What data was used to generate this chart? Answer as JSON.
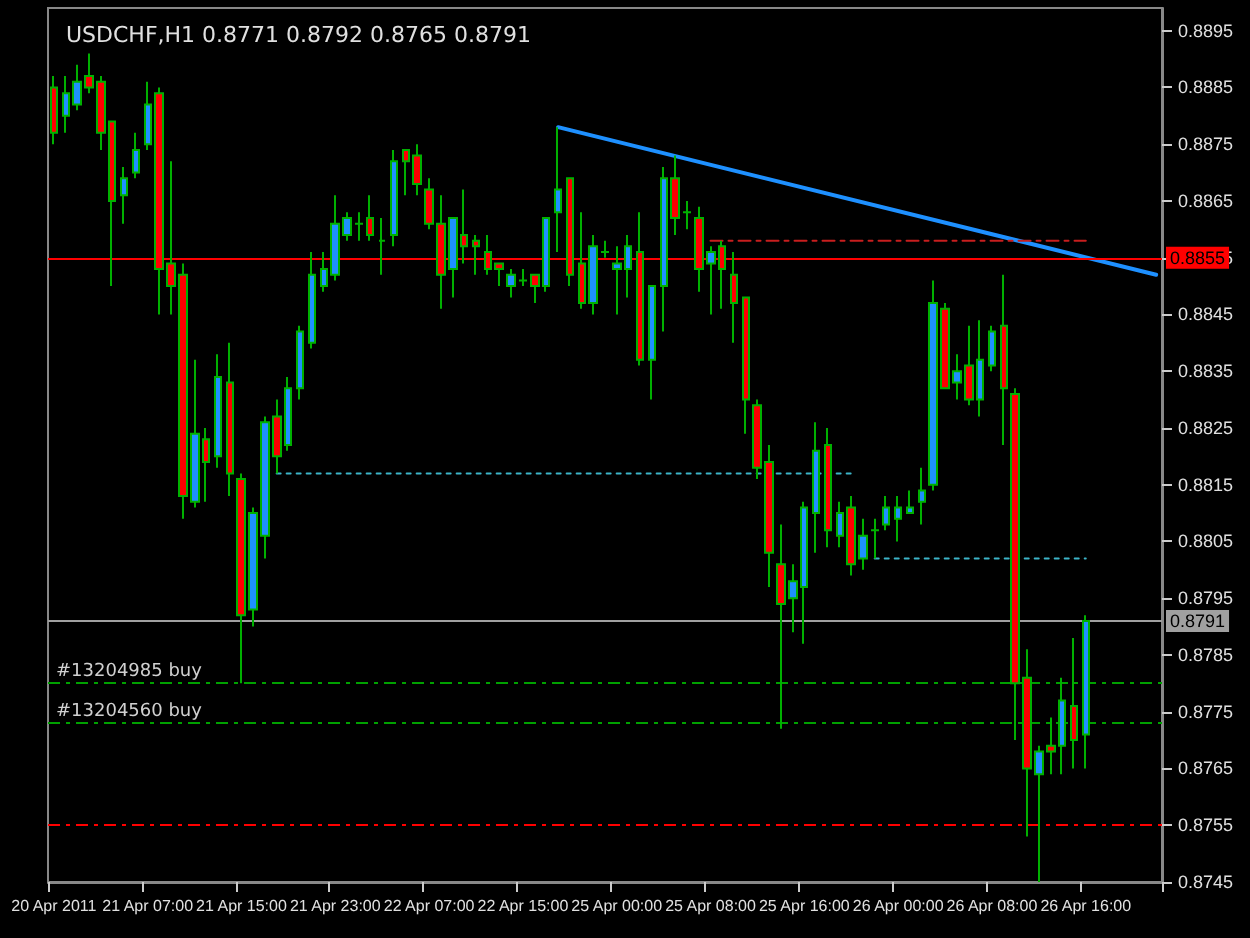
{
  "chart_data": {
    "type": "candlestick",
    "title": "USDCHF,H1 0.8771 0.8792 0.8765 0.8791",
    "categories": [
      "20 Apr 2011",
      null,
      null,
      null,
      null,
      null,
      null,
      null,
      "21 Apr 07:00",
      null,
      null,
      null,
      null,
      null,
      null,
      null,
      "21 Apr 15:00",
      null,
      null,
      null,
      null,
      null,
      null,
      null,
      "21 Apr 23:00",
      null,
      null,
      null,
      null,
      null,
      null,
      null,
      "22 Apr 07:00",
      null,
      null,
      null,
      null,
      null,
      null,
      null,
      "22 Apr 15:00",
      null,
      null,
      null,
      null,
      null,
      null,
      null,
      "25 Apr 00:00",
      null,
      null,
      null,
      null,
      null,
      null,
      null,
      "25 Apr 08:00",
      null,
      null,
      null,
      null,
      null,
      null,
      null,
      "25 Apr 16:00",
      null,
      null,
      null,
      null,
      null,
      null,
      null,
      "26 Apr 00:00",
      null,
      null,
      null,
      null,
      null,
      null,
      null,
      "26 Apr 08:00",
      null,
      null,
      null,
      null,
      null,
      null,
      null,
      "26 Apr 16:00",
      null,
      null,
      null,
      null,
      null,
      null
    ],
    "ohlc": [
      [
        0.8885,
        0.8887,
        0.8875,
        0.8877
      ],
      [
        0.888,
        0.8887,
        0.8877,
        0.8884
      ],
      [
        0.8882,
        0.8889,
        0.8881,
        0.8886
      ],
      [
        0.8887,
        0.8891,
        0.8884,
        0.8885
      ],
      [
        0.8886,
        0.8887,
        0.8874,
        0.8877
      ],
      [
        0.8879,
        0.8879,
        0.885,
        0.8865
      ],
      [
        0.8866,
        0.8871,
        0.8861,
        0.8869
      ],
      [
        0.887,
        0.8877,
        0.8869,
        0.8874
      ],
      [
        0.8875,
        0.8886,
        0.8874,
        0.8882
      ],
      [
        0.8884,
        0.8885,
        0.8845,
        0.8853
      ],
      [
        0.8854,
        0.8872,
        0.8845,
        0.885
      ],
      [
        0.8852,
        0.8854,
        0.8809,
        0.8813
      ],
      [
        0.8812,
        0.8837,
        0.8811,
        0.8824
      ],
      [
        0.8823,
        0.8825,
        0.8812,
        0.8819
      ],
      [
        0.882,
        0.8838,
        0.8818,
        0.8834
      ],
      [
        0.8833,
        0.884,
        0.8813,
        0.8817
      ],
      [
        0.8816,
        0.8817,
        0.878,
        0.8792
      ],
      [
        0.8793,
        0.8811,
        0.879,
        0.881
      ],
      [
        0.8806,
        0.8827,
        0.8802,
        0.8826
      ],
      [
        0.8827,
        0.883,
        0.8817,
        0.882
      ],
      [
        0.8822,
        0.8834,
        0.8821,
        0.8832
      ],
      [
        0.8832,
        0.8843,
        0.883,
        0.8842
      ],
      [
        0.884,
        0.8856,
        0.8839,
        0.8852
      ],
      [
        0.885,
        0.8856,
        0.8849,
        0.8853
      ],
      [
        0.8852,
        0.8866,
        0.8851,
        0.8861
      ],
      [
        0.8859,
        0.8863,
        0.8858,
        0.8862
      ],
      [
        0.8861,
        0.8863,
        0.8858,
        0.8861
      ],
      [
        0.8862,
        0.8866,
        0.8858,
        0.8859
      ],
      [
        0.8858,
        0.8862,
        0.8852,
        0.8858
      ],
      [
        0.8859,
        0.8874,
        0.8857,
        0.8872
      ],
      [
        0.8874,
        0.8874,
        0.8866,
        0.8872
      ],
      [
        0.8873,
        0.8875,
        0.8866,
        0.8868
      ],
      [
        0.8867,
        0.8869,
        0.886,
        0.8861
      ],
      [
        0.8861,
        0.8866,
        0.8846,
        0.8852
      ],
      [
        0.8853,
        0.8862,
        0.8848,
        0.8862
      ],
      [
        0.8859,
        0.8867,
        0.8854,
        0.8857
      ],
      [
        0.8858,
        0.8859,
        0.8852,
        0.8857
      ],
      [
        0.8856,
        0.8859,
        0.8852,
        0.8853
      ],
      [
        0.8854,
        0.8854,
        0.885,
        0.8853
      ],
      [
        0.885,
        0.8853,
        0.8848,
        0.8852
      ],
      [
        0.8851,
        0.8853,
        0.885,
        0.8851
      ],
      [
        0.8852,
        0.8852,
        0.8847,
        0.885
      ],
      [
        0.885,
        0.8862,
        0.8849,
        0.8862
      ],
      [
        0.8863,
        0.8878,
        0.8856,
        0.8867
      ],
      [
        0.8869,
        0.8869,
        0.885,
        0.8852
      ],
      [
        0.8854,
        0.8863,
        0.8846,
        0.8847
      ],
      [
        0.8847,
        0.8859,
        0.8845,
        0.8857
      ],
      [
        0.8856,
        0.8858,
        0.8855,
        0.8856
      ],
      [
        0.8853,
        0.8857,
        0.8845,
        0.8854
      ],
      [
        0.8853,
        0.8859,
        0.8848,
        0.8857
      ],
      [
        0.8856,
        0.8863,
        0.8836,
        0.8837
      ],
      [
        0.8837,
        0.885,
        0.883,
        0.885
      ],
      [
        0.885,
        0.8871,
        0.8842,
        0.8869
      ],
      [
        0.8869,
        0.8873,
        0.8859,
        0.8862
      ],
      [
        0.8863,
        0.8865,
        0.886,
        0.8863
      ],
      [
        0.8862,
        0.8864,
        0.8849,
        0.8853
      ],
      [
        0.8854,
        0.8857,
        0.8845,
        0.8856
      ],
      [
        0.8857,
        0.8858,
        0.8846,
        0.8853
      ],
      [
        0.8852,
        0.8856,
        0.884,
        0.8847
      ],
      [
        0.8848,
        0.8848,
        0.8824,
        0.883
      ],
      [
        0.8829,
        0.883,
        0.8816,
        0.8818
      ],
      [
        0.8819,
        0.8822,
        0.8797,
        0.8803
      ],
      [
        0.8801,
        0.8808,
        0.8772,
        0.8794
      ],
      [
        0.8795,
        0.8801,
        0.8789,
        0.8798
      ],
      [
        0.8797,
        0.8812,
        0.8787,
        0.8811
      ],
      [
        0.881,
        0.8826,
        0.8803,
        0.8821
      ],
      [
        0.8822,
        0.8825,
        0.8804,
        0.8807
      ],
      [
        0.8806,
        0.8812,
        0.8804,
        0.881
      ],
      [
        0.8811,
        0.8813,
        0.8799,
        0.8801
      ],
      [
        0.8802,
        0.8809,
        0.88,
        0.8806
      ],
      [
        0.8807,
        0.8809,
        0.8802,
        0.8807
      ],
      [
        0.8808,
        0.8813,
        0.8807,
        0.8811
      ],
      [
        0.8809,
        0.8813,
        0.8805,
        0.8811
      ],
      [
        0.881,
        0.8814,
        0.881,
        0.8811
      ],
      [
        0.8812,
        0.8818,
        0.8808,
        0.8814
      ],
      [
        0.8815,
        0.8851,
        0.8814,
        0.8847
      ],
      [
        0.8846,
        0.8847,
        0.8832,
        0.8832
      ],
      [
        0.8833,
        0.8838,
        0.883,
        0.8835
      ],
      [
        0.8836,
        0.8843,
        0.8829,
        0.883
      ],
      [
        0.883,
        0.8844,
        0.8827,
        0.8837
      ],
      [
        0.8836,
        0.8843,
        0.8835,
        0.8842
      ],
      [
        0.8843,
        0.8852,
        0.8822,
        0.8832
      ],
      [
        0.8831,
        0.8832,
        0.877,
        0.878
      ],
      [
        0.8781,
        0.8786,
        0.8753,
        0.8765
      ],
      [
        0.8764,
        0.8769,
        0.8745,
        0.8768
      ],
      [
        0.8769,
        0.8774,
        0.8764,
        0.8768
      ],
      [
        0.8769,
        0.8781,
        0.8764,
        0.8777
      ],
      [
        0.8776,
        0.8788,
        0.8765,
        0.877
      ],
      [
        0.8771,
        0.8792,
        0.8765,
        0.8791
      ],
      null,
      null,
      null,
      null,
      null,
      null
    ],
    "colors": [
      "#ff0000",
      "#1e90ff",
      "#1e90ff",
      "#ff0000",
      "#ff0000",
      "#ff0000",
      "#1e90ff",
      "#1e90ff",
      "#1e90ff",
      "#ff0000",
      "#ff0000",
      "#ff0000",
      "#1e90ff",
      "#ff0000",
      "#1e90ff",
      "#ff0000",
      "#ff0000",
      "#1e90ff",
      "#1e90ff",
      "#ff0000",
      "#1e90ff",
      "#1e90ff",
      "#1e90ff",
      "#1e90ff",
      "#1e90ff",
      "#1e90ff",
      "#00c000",
      "#ff0000",
      "#00c000",
      "#1e90ff",
      "#ff0000",
      "#ff0000",
      "#ff0000",
      "#ff0000",
      "#1e90ff",
      "#ff0000",
      "#ff0000",
      "#ff0000",
      "#ff0000",
      "#1e90ff",
      "#00c000",
      "#ff0000",
      "#1e90ff",
      "#1e90ff",
      "#ff0000",
      "#ff0000",
      "#1e90ff",
      "#00c000",
      "#1e90ff",
      "#1e90ff",
      "#ff0000",
      "#1e90ff",
      "#1e90ff",
      "#ff0000",
      "#00c000",
      "#ff0000",
      "#1e90ff",
      "#ff0000",
      "#ff0000",
      "#ff0000",
      "#ff0000",
      "#ff0000",
      "#ff0000",
      "#1e90ff",
      "#1e90ff",
      "#1e90ff",
      "#ff0000",
      "#1e90ff",
      "#ff0000",
      "#1e90ff",
      "#00c000",
      "#1e90ff",
      "#1e90ff",
      "#1e90ff",
      "#1e90ff",
      "#1e90ff",
      "#ff0000",
      "#1e90ff",
      "#ff0000",
      "#1e90ff",
      "#1e90ff",
      "#ff0000",
      "#ff0000",
      "#ff0000",
      "#1e90ff",
      "#ff0000",
      "#1e90ff",
      "#ff0000",
      "#1e90ff",
      null,
      null,
      null,
      null,
      null,
      null
    ],
    "series": [
      {
        "type": "line",
        "color": "#1e90ff",
        "line_style": "solid",
        "values": [
          null,
          null,
          null,
          null,
          null,
          null,
          null,
          null,
          null,
          null,
          null,
          null,
          null,
          null,
          null,
          null,
          null,
          null,
          null,
          null,
          null,
          null,
          null,
          null,
          null,
          null,
          null,
          null,
          null,
          null,
          null,
          null,
          null,
          null,
          null,
          null,
          null,
          null,
          null,
          null,
          null,
          null,
          null,
          0.8878,
          null,
          null,
          null,
          null,
          null,
          null,
          null,
          null,
          null,
          null,
          null,
          null,
          null,
          null,
          null,
          null,
          null,
          null,
          null,
          null,
          null,
          null,
          null,
          null,
          null,
          null,
          null,
          null,
          null,
          null,
          null,
          null,
          null,
          null,
          null,
          null,
          null,
          null,
          null,
          null,
          null,
          null,
          null,
          null,
          null,
          null,
          null,
          null,
          null,
          null,
          0.8852
        ]
      },
      {
        "type": "line",
        "color": "#3cb4c8",
        "line_style": "dotted",
        "values": [
          null,
          null,
          null,
          null,
          null,
          null,
          null,
          null,
          null,
          null,
          null,
          null,
          null,
          null,
          null,
          null,
          null,
          null,
          null,
          0.8817,
          null,
          null,
          null,
          null,
          null,
          null,
          null,
          null,
          null,
          null,
          null,
          null,
          null,
          null,
          null,
          null,
          null,
          null,
          null,
          null,
          null,
          null,
          null,
          null,
          null,
          null,
          null,
          null,
          null,
          null,
          null,
          null,
          null,
          null,
          null,
          null,
          null,
          null,
          null,
          null,
          null,
          null,
          null,
          null,
          null,
          null,
          null,
          null,
          0.8817,
          null,
          null,
          null,
          null,
          null,
          null,
          null,
          null,
          null,
          null,
          null,
          null,
          null,
          null,
          null,
          null,
          null,
          null,
          null,
          null,
          null,
          null,
          null,
          null,
          null,
          null
        ]
      },
      {
        "type": "line",
        "color": "#3cb4c8",
        "line_style": "dotted",
        "values": [
          null,
          null,
          null,
          null,
          null,
          null,
          null,
          null,
          null,
          null,
          null,
          null,
          null,
          null,
          null,
          null,
          null,
          null,
          null,
          null,
          null,
          null,
          null,
          null,
          null,
          null,
          null,
          null,
          null,
          null,
          null,
          null,
          null,
          null,
          null,
          null,
          null,
          null,
          null,
          null,
          null,
          null,
          null,
          null,
          null,
          null,
          null,
          null,
          null,
          null,
          null,
          null,
          null,
          null,
          null,
          null,
          null,
          null,
          null,
          null,
          null,
          null,
          null,
          null,
          null,
          null,
          null,
          null,
          null,
          null,
          0.8802,
          null,
          null,
          null,
          null,
          null,
          null,
          null,
          null,
          null,
          null,
          null,
          null,
          null,
          null,
          null,
          null,
          null,
          0.8802,
          null,
          null,
          null,
          null,
          null,
          null
        ]
      },
      {
        "type": "line",
        "color": "#c81e1e",
        "line_style": "dashed",
        "values": [
          null,
          null,
          null,
          null,
          null,
          null,
          null,
          null,
          null,
          null,
          null,
          null,
          null,
          null,
          null,
          null,
          null,
          null,
          null,
          null,
          null,
          null,
          null,
          null,
          null,
          null,
          null,
          null,
          null,
          null,
          null,
          null,
          null,
          null,
          null,
          null,
          null,
          null,
          null,
          null,
          null,
          null,
          null,
          null,
          null,
          null,
          null,
          null,
          null,
          null,
          null,
          null,
          null,
          null,
          null,
          null,
          0.8858,
          null,
          null,
          null,
          null,
          null,
          null,
          null,
          null,
          null,
          null,
          null,
          null,
          null,
          null,
          null,
          null,
          null,
          null,
          null,
          null,
          null,
          null,
          null,
          null,
          null,
          null,
          null,
          null,
          null,
          null,
          null,
          0.8858,
          null,
          null,
          null,
          null,
          null,
          null
        ]
      }
    ],
    "ref_lines": [
      {
        "axis": "y",
        "value": 0.8855,
        "label": "0.8855",
        "color": "#ff0000",
        "line_style": "solid"
      },
      {
        "axis": "y",
        "value": 0.8791,
        "label": "0.8791",
        "color": "#a0a0a0",
        "line_style": "solid"
      },
      {
        "axis": "y",
        "value": 0.878,
        "label": "#13204985 buy",
        "color": "#00a000",
        "line_style": "dashed"
      },
      {
        "axis": "y",
        "value": 0.8773,
        "label": "#13204560 buy",
        "color": "#00a000",
        "line_style": "dashed"
      },
      {
        "axis": "y",
        "value": 0.8755,
        "label": null,
        "color": "#ff0000",
        "line_style": "dashed"
      }
    ],
    "ylim": [
      0.8745,
      0.8899
    ],
    "yticks": [
      0.8745,
      0.8755,
      0.8765,
      0.8775,
      0.8785,
      0.8795,
      0.8805,
      0.8815,
      0.8825,
      0.8835,
      0.8845,
      0.8855,
      0.8865,
      0.8875,
      0.8885,
      0.8895
    ],
    "grid": false
  }
}
